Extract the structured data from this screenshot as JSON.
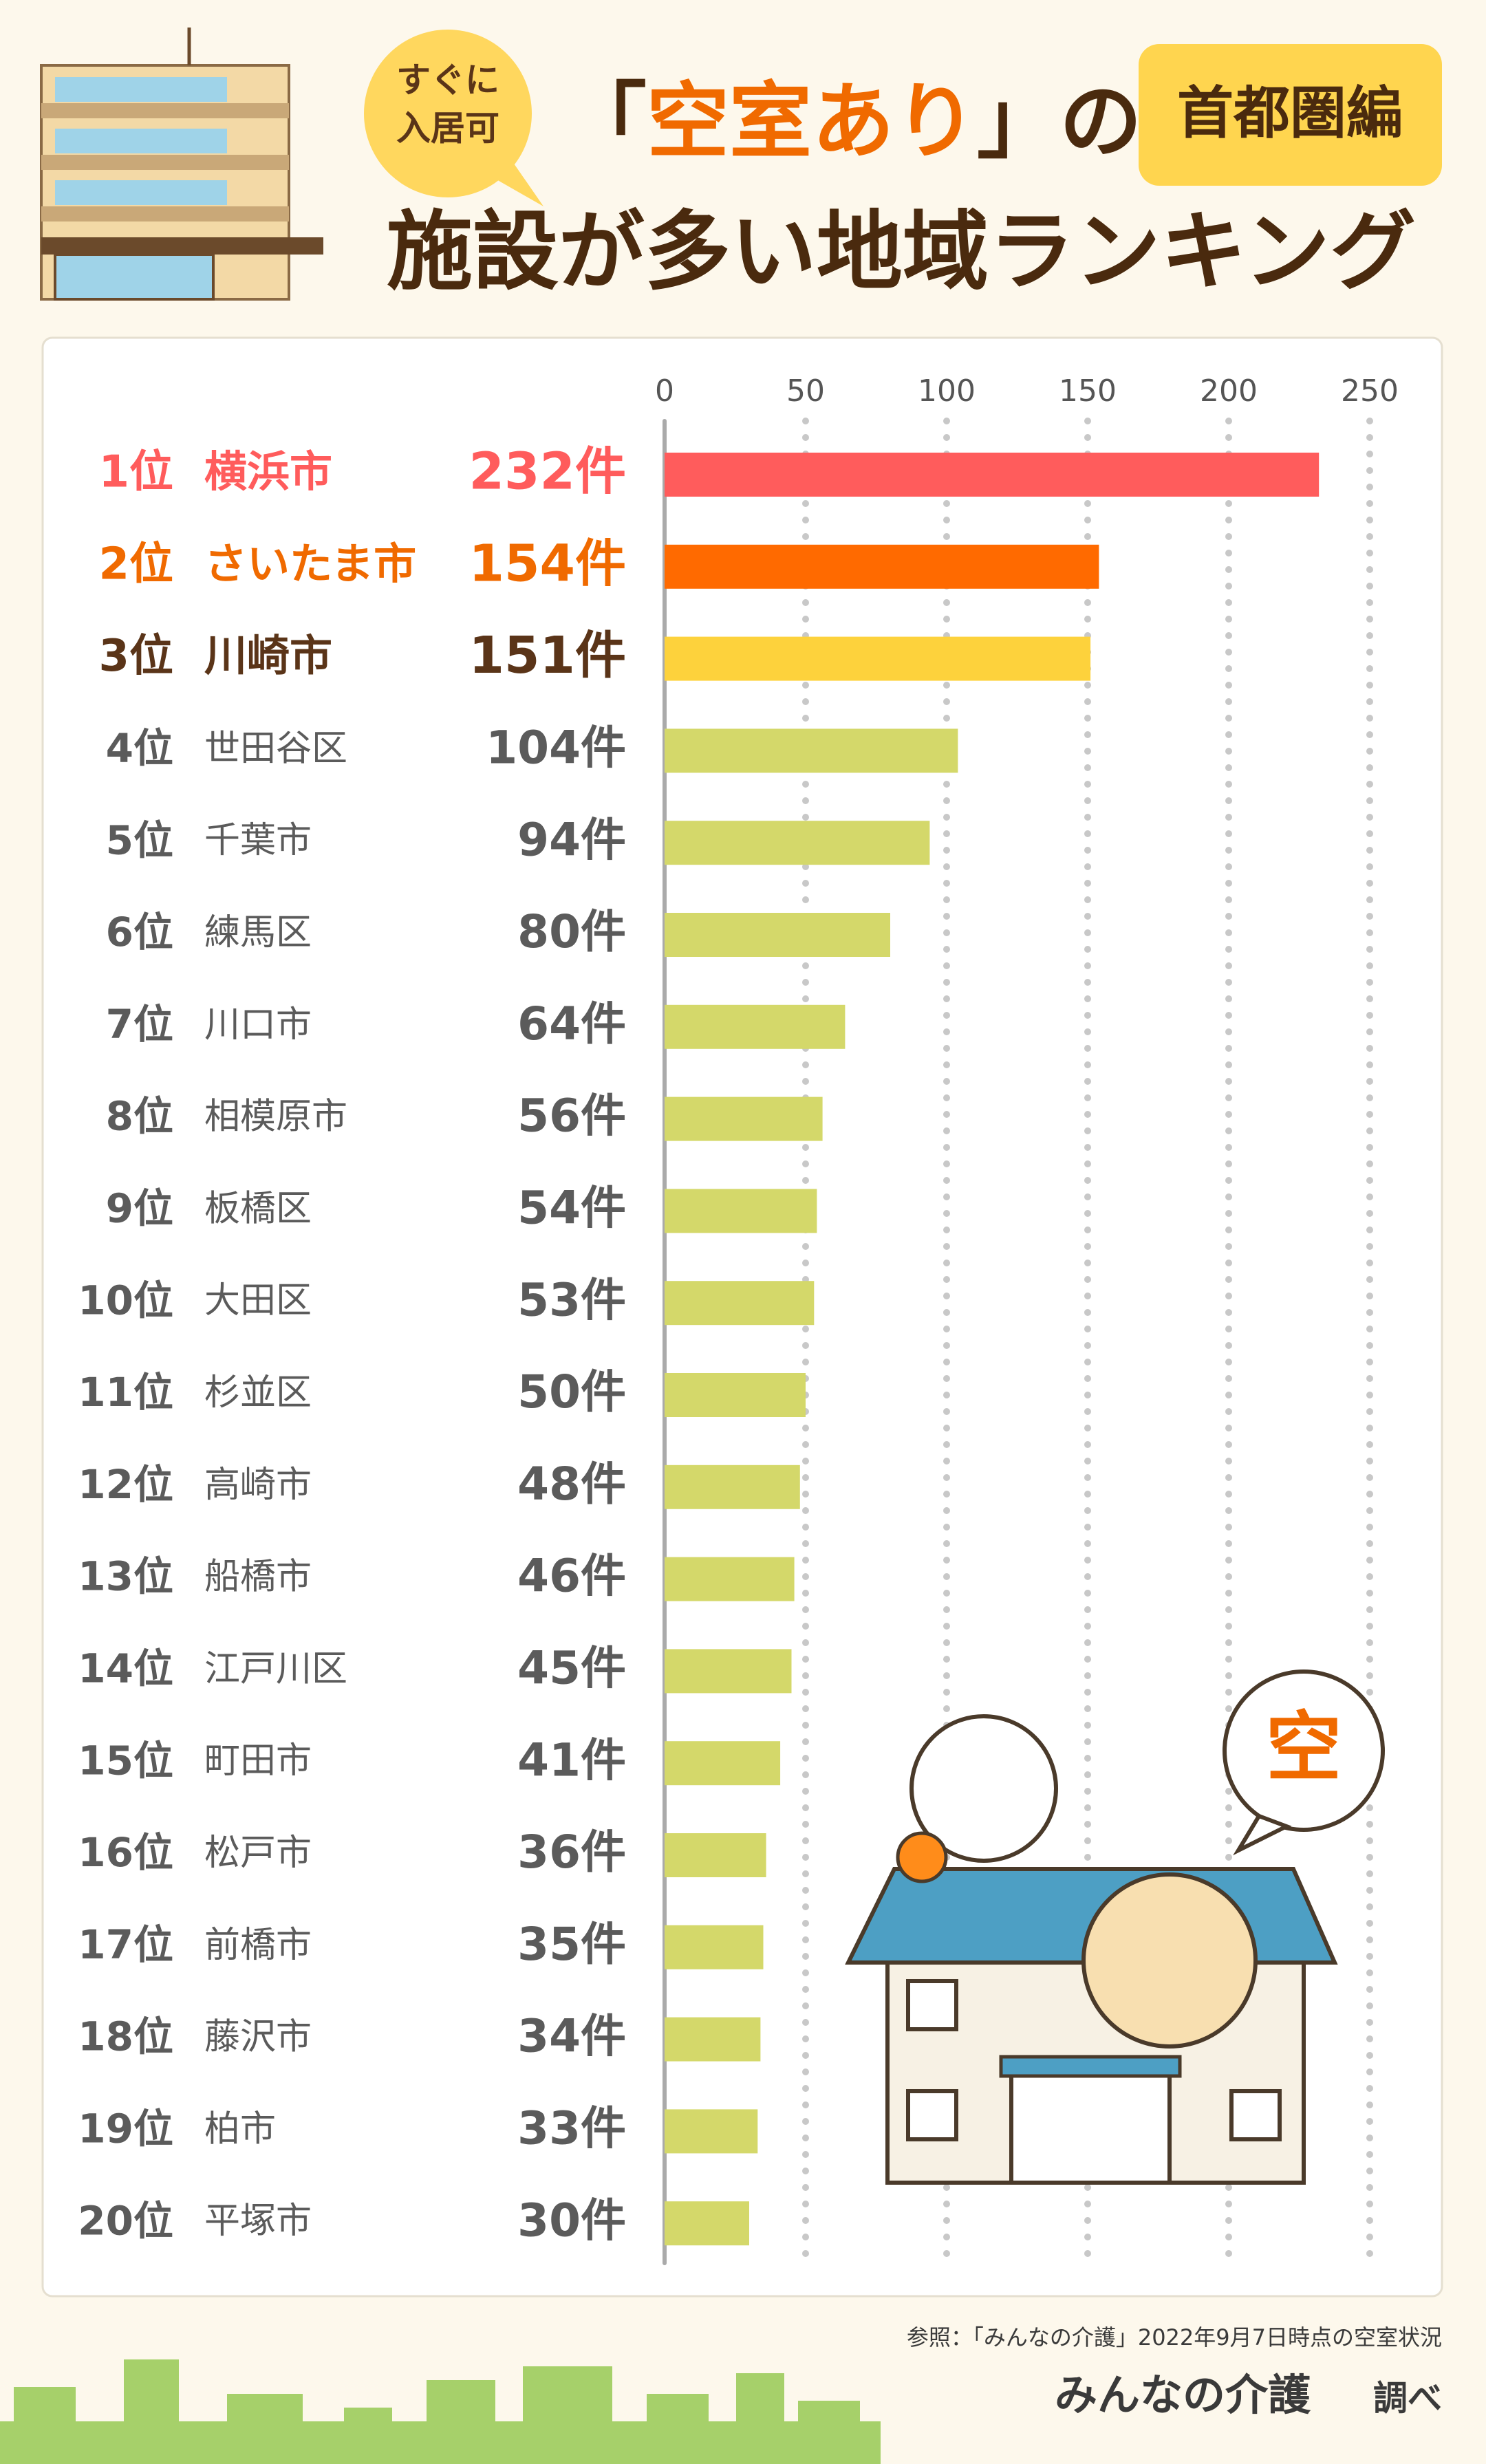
{
  "header": {
    "badge": [
      "すぐに",
      "入居可"
    ],
    "title_line1": [
      "「",
      "空室あり",
      "」の"
    ],
    "title_line2": "施設が多い地域ランキング",
    "tag": "首都圏編"
  },
  "chart_data": {
    "type": "bar",
    "orientation": "horizontal",
    "ranks": [
      "1位",
      "2位",
      "3位",
      "4位",
      "5位",
      "6位",
      "7位",
      "8位",
      "9位",
      "10位",
      "11位",
      "12位",
      "13位",
      "14位",
      "15位",
      "16位",
      "17位",
      "18位",
      "19位",
      "20位"
    ],
    "categories": [
      "横浜市",
      "さいたま市",
      "川崎市",
      "世田谷区",
      "千葉市",
      "練馬区",
      "川口市",
      "相模原市",
      "板橋区",
      "大田区",
      "杉並区",
      "高崎市",
      "船橋市",
      "江戸川区",
      "町田市",
      "松戸市",
      "前橋市",
      "藤沢市",
      "柏市",
      "平塚市"
    ],
    "values": [
      232,
      154,
      151,
      104,
      94,
      80,
      64,
      56,
      54,
      53,
      50,
      48,
      46,
      45,
      41,
      36,
      35,
      34,
      33,
      30
    ],
    "value_labels": [
      "232件",
      "154件",
      "151件",
      "104件",
      "94件",
      "80件",
      "64件",
      "56件",
      "54件",
      "53件",
      "50件",
      "48件",
      "46件",
      "45件",
      "41件",
      "36件",
      "35件",
      "34件",
      "33件",
      "30件"
    ],
    "colors": [
      "#ff5c5c",
      "#ff6a00",
      "#fdd23c",
      "#d4d86a",
      "#d4d86a",
      "#d4d86a",
      "#d4d86a",
      "#d4d86a",
      "#d4d86a",
      "#d4d86a",
      "#d4d86a",
      "#d4d86a",
      "#d4d86a",
      "#d4d86a",
      "#d4d86a",
      "#d4d86a",
      "#d4d86a",
      "#d4d86a",
      "#d4d86a",
      "#d4d86a"
    ],
    "label_colors": [
      "#ff5c5c",
      "#f06a00",
      "#5a3418",
      "#5b5b5b",
      "#5b5b5b",
      "#5b5b5b",
      "#5b5b5b",
      "#5b5b5b",
      "#5b5b5b",
      "#5b5b5b",
      "#5b5b5b",
      "#5b5b5b",
      "#5b5b5b",
      "#5b5b5b",
      "#5b5b5b",
      "#5b5b5b",
      "#5b5b5b",
      "#5b5b5b",
      "#5b5b5b",
      "#5b5b5b"
    ],
    "xlim": [
      0,
      250
    ],
    "xticks": [
      0,
      50,
      100,
      150,
      200,
      250
    ],
    "grid": true
  },
  "illustration": {
    "bubble": "空"
  },
  "footer": {
    "source": "参照：「みんなの介護」2022年9月7日時点の空室状況",
    "brand": "みんなの介護",
    "suffix": "調べ"
  }
}
